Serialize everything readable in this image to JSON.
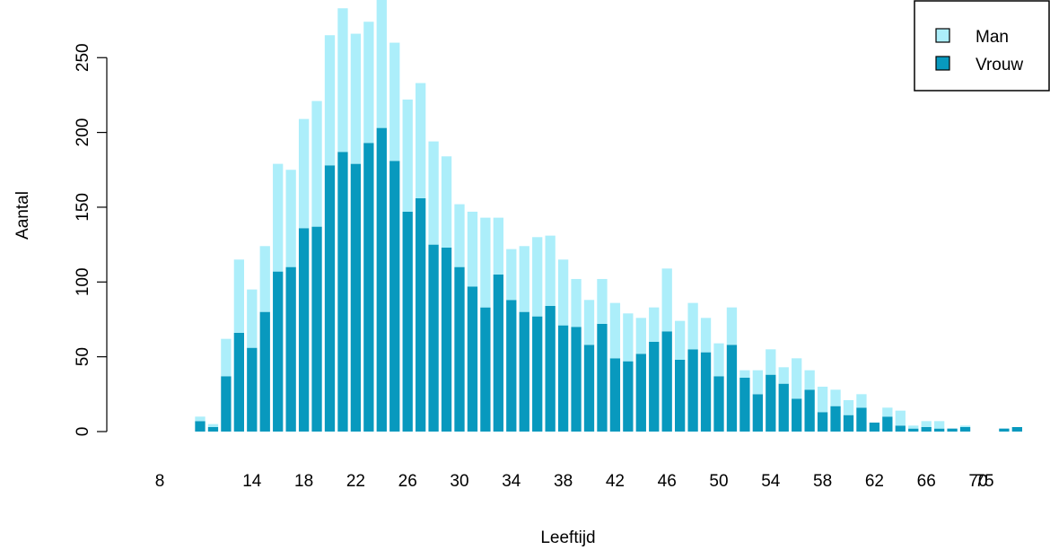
{
  "chart_data": {
    "type": "bar",
    "stacked": true,
    "xlabel": "Leeftijd",
    "ylabel": "Aantal",
    "ylim": [
      0,
      290
    ],
    "yticks": [
      0,
      50,
      100,
      150,
      200,
      250
    ],
    "xtick_labels": [
      "8",
      "14",
      "18",
      "22",
      "26",
      "30",
      "34",
      "38",
      "42",
      "46",
      "50",
      "54",
      "58",
      "62",
      "66",
      "70",
      "75"
    ],
    "categories": [
      10,
      11,
      12,
      13,
      14,
      15,
      16,
      17,
      18,
      19,
      20,
      21,
      22,
      23,
      24,
      25,
      26,
      27,
      28,
      29,
      30,
      31,
      32,
      33,
      34,
      35,
      36,
      37,
      38,
      39,
      40,
      41,
      42,
      43,
      44,
      45,
      46,
      47,
      48,
      49,
      50,
      51,
      52,
      53,
      54,
      55,
      56,
      57,
      58,
      59,
      60,
      61,
      62,
      63,
      64,
      65,
      66,
      67,
      68,
      69,
      70,
      71,
      72,
      73,
      74
    ],
    "series": [
      {
        "name": "Vrouw",
        "color": "#0899BE",
        "values": [
          7,
          3,
          37,
          66,
          56,
          80,
          107,
          110,
          136,
          137,
          178,
          187,
          179,
          193,
          203,
          181,
          147,
          156,
          125,
          123,
          110,
          97,
          83,
          105,
          88,
          80,
          77,
          84,
          71,
          70,
          58,
          72,
          49,
          47,
          52,
          60,
          67,
          48,
          55,
          53,
          37,
          58,
          36,
          25,
          38,
          32,
          22,
          28,
          13,
          17,
          11,
          16,
          6,
          10,
          4,
          2,
          3,
          2,
          2,
          3,
          0,
          0,
          2,
          3,
          0
        ]
      },
      {
        "name": "Man",
        "color": "#ACEEFA",
        "values": [
          3,
          2,
          25,
          49,
          39,
          44,
          72,
          65,
          73,
          84,
          87,
          96,
          87,
          81,
          86,
          79,
          75,
          77,
          69,
          61,
          42,
          50,
          60,
          38,
          34,
          44,
          53,
          47,
          44,
          32,
          30,
          30,
          37,
          32,
          24,
          23,
          42,
          26,
          31,
          23,
          22,
          25,
          5,
          16,
          17,
          11,
          27,
          13,
          17,
          11,
          10,
          9,
          0,
          6,
          10,
          2,
          4,
          5,
          0,
          1,
          0,
          0,
          0,
          0,
          0
        ]
      }
    ],
    "legend": {
      "position": "top-right",
      "entries": [
        "Man",
        "Vrouw"
      ]
    },
    "grid": false
  }
}
